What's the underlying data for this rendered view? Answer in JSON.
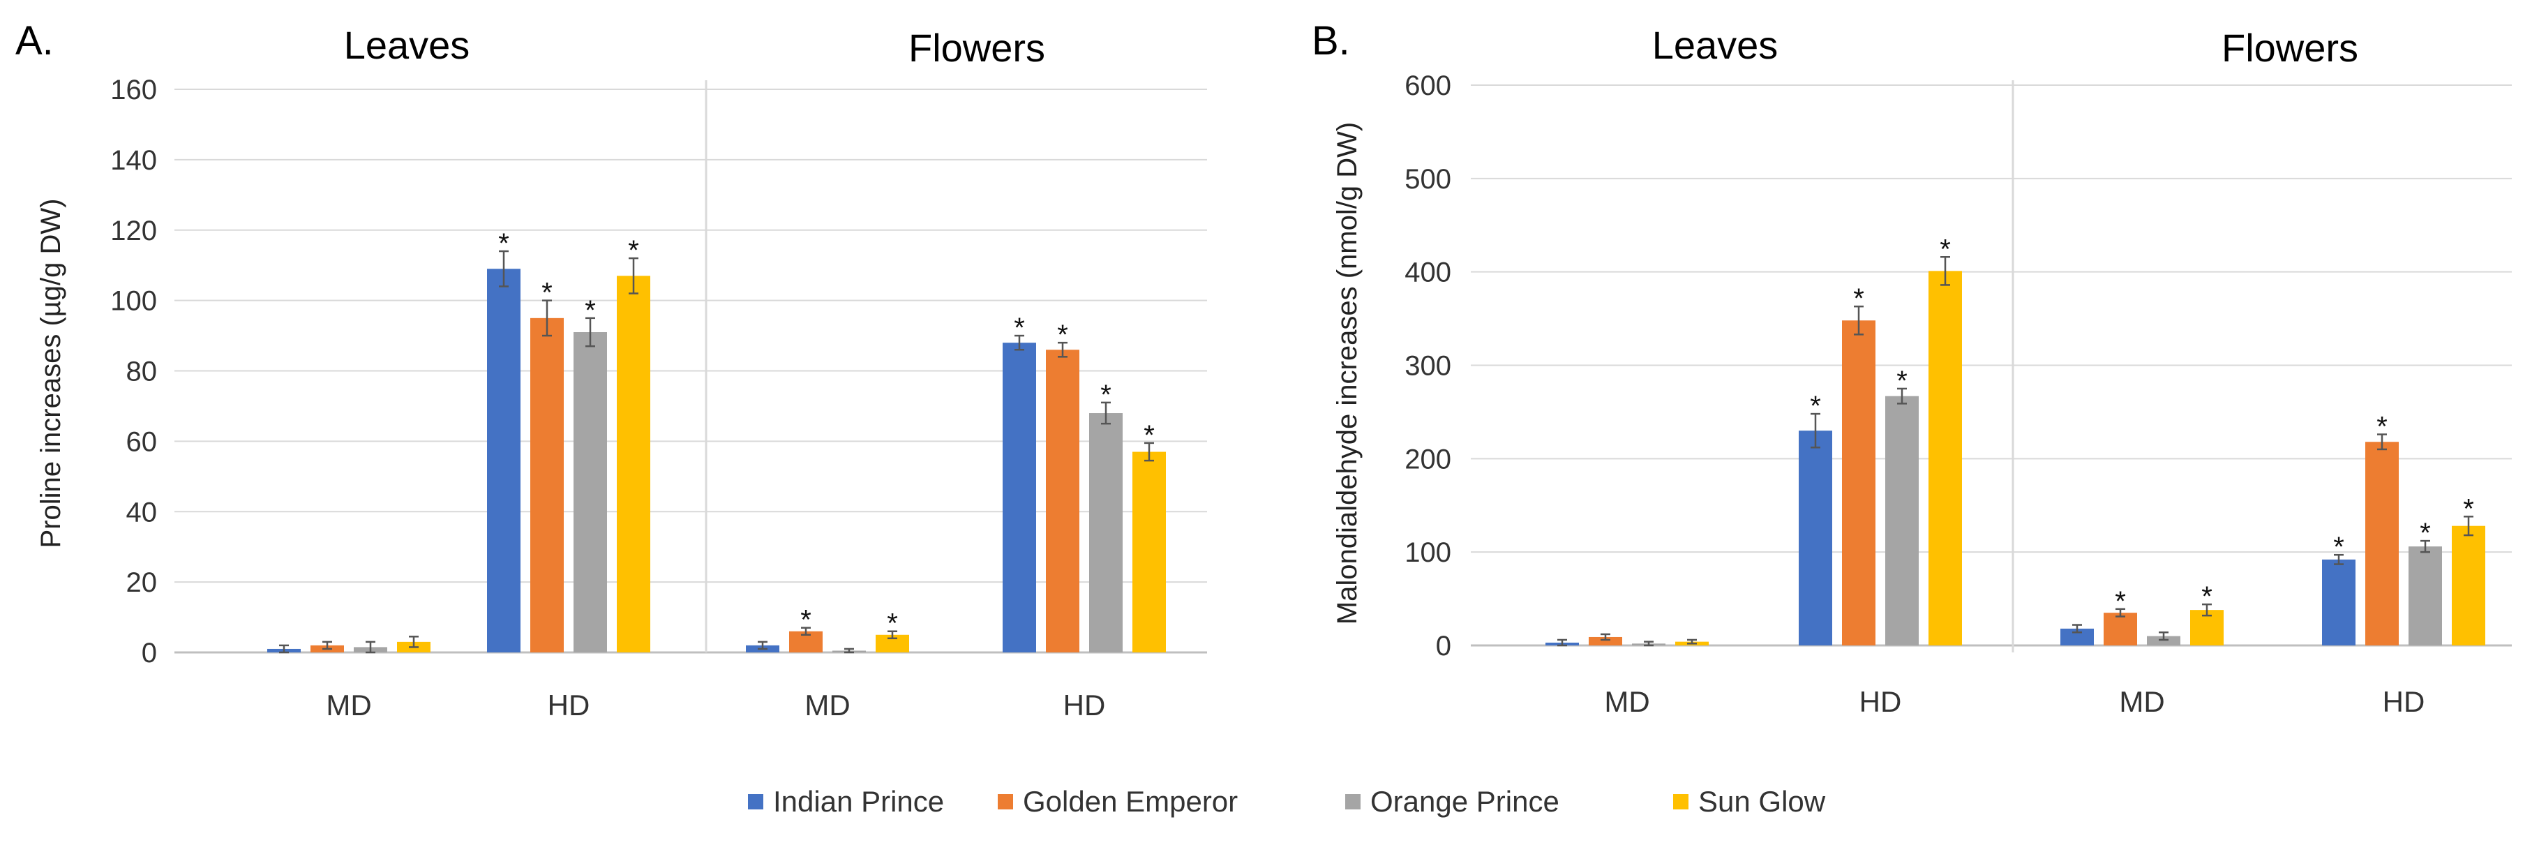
{
  "legend": [
    {
      "name": "Indian Prince",
      "color": "#4472C4"
    },
    {
      "name": "Golden Emperor",
      "color": "#ED7D31"
    },
    {
      "name": "Orange Prince",
      "color": "#A5A5A5"
    },
    {
      "name": "Sun Glow",
      "color": "#FFC000"
    }
  ],
  "chart_data": [
    {
      "type": "bar",
      "panel_label": "A.",
      "ylabel": "Proline increases (µg/g DW)",
      "ylim": [
        0,
        160
      ],
      "yticks": [
        0,
        20,
        40,
        60,
        80,
        100,
        120,
        140,
        160
      ],
      "facets": [
        {
          "title": "Leaves",
          "categories": [
            "MD",
            "HD"
          ],
          "series": [
            {
              "name": "Indian Prince",
              "values": [
                1,
                109
              ],
              "errors": [
                1,
                5
              ],
              "significant": [
                false,
                true
              ]
            },
            {
              "name": "Golden Emperor",
              "values": [
                2,
                95
              ],
              "errors": [
                1,
                5
              ],
              "significant": [
                false,
                true
              ]
            },
            {
              "name": "Orange Prince",
              "values": [
                1.5,
                91
              ],
              "errors": [
                1.5,
                4
              ],
              "significant": [
                false,
                true
              ]
            },
            {
              "name": "Sun Glow",
              "values": [
                3,
                107
              ],
              "errors": [
                1.5,
                5
              ],
              "significant": [
                false,
                true
              ]
            }
          ]
        },
        {
          "title": "Flowers",
          "categories": [
            "MD",
            "HD"
          ],
          "series": [
            {
              "name": "Indian Prince",
              "values": [
                2,
                88
              ],
              "errors": [
                1,
                2
              ],
              "significant": [
                false,
                true
              ]
            },
            {
              "name": "Golden Emperor",
              "values": [
                6,
                86
              ],
              "errors": [
                1,
                2
              ],
              "significant": [
                true,
                true
              ]
            },
            {
              "name": "Orange Prince",
              "values": [
                0.5,
                68
              ],
              "errors": [
                0.5,
                3
              ],
              "significant": [
                false,
                true
              ]
            },
            {
              "name": "Sun Glow",
              "values": [
                5,
                57
              ],
              "errors": [
                1,
                2.5
              ],
              "significant": [
                true,
                true
              ]
            }
          ]
        }
      ]
    },
    {
      "type": "bar",
      "panel_label": "B.",
      "ylabel": "Malondialdehyde increases (nmol/g DW)",
      "ylim": [
        0,
        600
      ],
      "yticks": [
        0,
        100,
        200,
        300,
        400,
        500,
        600
      ],
      "facets": [
        {
          "title": "Leaves",
          "categories": [
            "MD",
            "HD"
          ],
          "series": [
            {
              "name": "Indian Prince",
              "values": [
                3,
                230
              ],
              "errors": [
                3,
                18
              ],
              "significant": [
                false,
                true
              ]
            },
            {
              "name": "Golden Emperor",
              "values": [
                9,
                348
              ],
              "errors": [
                3,
                15
              ],
              "significant": [
                false,
                true
              ]
            },
            {
              "name": "Orange Prince",
              "values": [
                2,
                267
              ],
              "errors": [
                2,
                8
              ],
              "significant": [
                false,
                true
              ]
            },
            {
              "name": "Sun Glow",
              "values": [
                4,
                401
              ],
              "errors": [
                2,
                15
              ],
              "significant": [
                false,
                true
              ]
            }
          ]
        },
        {
          "title": "Flowers",
          "categories": [
            "MD",
            "HD"
          ],
          "series": [
            {
              "name": "Indian Prince",
              "values": [
                18,
                92
              ],
              "errors": [
                4,
                5
              ],
              "significant": [
                false,
                true
              ]
            },
            {
              "name": "Golden Emperor",
              "values": [
                35,
                218
              ],
              "errors": [
                4,
                8
              ],
              "significant": [
                true,
                true
              ]
            },
            {
              "name": "Orange Prince",
              "values": [
                10,
                106
              ],
              "errors": [
                4,
                6
              ],
              "significant": [
                false,
                true
              ]
            },
            {
              "name": "Sun Glow",
              "values": [
                38,
                128
              ],
              "errors": [
                6,
                10
              ],
              "significant": [
                true,
                true
              ]
            }
          ]
        }
      ]
    }
  ]
}
